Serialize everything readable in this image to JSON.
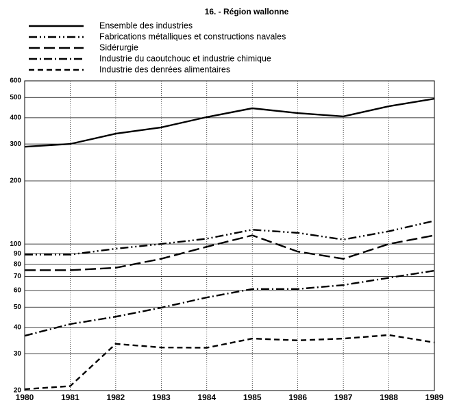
{
  "chart_data": {
    "type": "line",
    "title": "16. - Région wallonne",
    "x": [
      1980,
      1981,
      1982,
      1983,
      1984,
      1985,
      1986,
      1987,
      1988,
      1989
    ],
    "series": [
      {
        "name": "Ensemble des industries",
        "color": "#000000",
        "linestyle": "solid",
        "values": [
          291,
          300,
          336,
          360,
          403,
          444,
          421,
          406,
          454,
          493
        ]
      },
      {
        "name": "Fabrications métalliques et constructions navales",
        "color": "#000000",
        "linestyle": "dashdotdot",
        "values": [
          89,
          89,
          95,
          100,
          106,
          117,
          113,
          105,
          115,
          129
        ]
      },
      {
        "name": "Sidérurgie",
        "color": "#000000",
        "linestyle": "longdash",
        "values": [
          75,
          75,
          77,
          85,
          97,
          110,
          92,
          85,
          100,
          110
        ]
      },
      {
        "name": "Industrie du caoutchouc et industrie chimique",
        "color": "#000000",
        "linestyle": "dashdot",
        "values": [
          36.5,
          41.5,
          45,
          49.7,
          55.6,
          61,
          61,
          63.7,
          69,
          74.6
        ]
      },
      {
        "name": "Industrie des denrées alimentaires",
        "color": "#000000",
        "linestyle": "dash",
        "values": [
          20.3,
          21,
          33.4,
          32.1,
          32,
          35.4,
          34.7,
          35.4,
          36.8,
          33.9
        ]
      }
    ],
    "xlim": [
      1980,
      1989
    ],
    "xticks": [
      1980,
      1981,
      1982,
      1983,
      1984,
      1985,
      1986,
      1987,
      1988,
      1989
    ],
    "ylim": [
      20,
      600
    ],
    "yticks": [
      20,
      30,
      40,
      50,
      60,
      70,
      80,
      90,
      100,
      200,
      300,
      400,
      500,
      600
    ],
    "ylog": true,
    "grid": true
  }
}
